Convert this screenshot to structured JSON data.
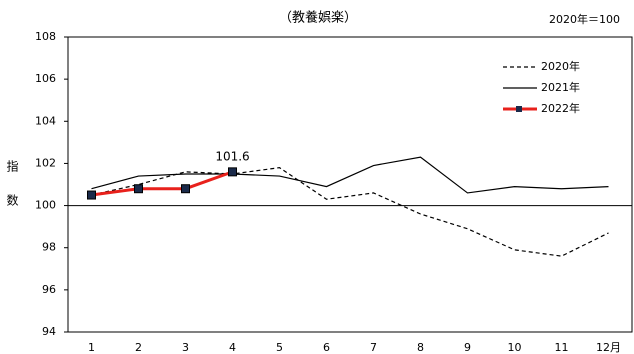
{
  "chart_data": {
    "type": "line",
    "title": "（教養娯楽）",
    "note": "2020年＝100",
    "ylabel": "指数",
    "categories": [
      "1",
      "2",
      "3",
      "4",
      "5",
      "6",
      "7",
      "8",
      "9",
      "10",
      "11",
      "12月"
    ],
    "series": [
      {
        "name": "2020年",
        "color": "#000000",
        "dash": true,
        "values": [
          100.5,
          101.0,
          101.6,
          101.5,
          101.8,
          100.3,
          100.6,
          99.6,
          98.9,
          97.9,
          97.6,
          98.7
        ]
      },
      {
        "name": "2021年",
        "color": "#000000",
        "dash": false,
        "values": [
          100.8,
          101.4,
          101.5,
          101.5,
          101.4,
          100.9,
          101.9,
          102.3,
          100.6,
          100.9,
          100.8,
          100.9
        ]
      },
      {
        "name": "2022年",
        "color": "#e8211c",
        "dash": false,
        "markers": true,
        "values": [
          100.5,
          100.8,
          100.8,
          101.6,
          null,
          null,
          null,
          null,
          null,
          null,
          null,
          null
        ]
      }
    ],
    "data_label": {
      "series": 2,
      "index": 3
    },
    "reference_line": 100,
    "ylim": [
      94,
      108
    ],
    "yticks": [
      94,
      96,
      98,
      100,
      102,
      104,
      106,
      108
    ],
    "legend": "upper-right"
  }
}
